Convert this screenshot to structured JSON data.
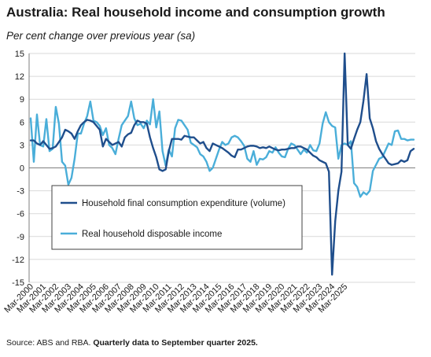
{
  "title": "Australia: Real household income and consumption growth",
  "subtitle": "Per cent change over previous year (sa)",
  "source": {
    "plain": "Source: ABS and RBA.",
    "bold": "Quarterly data to September quarter 2025."
  },
  "colors": {
    "consumption": "#1f4e8c",
    "income": "#4aaed9",
    "grid": "#d9d9d9",
    "axis": "#7f7f7f"
  },
  "chart_data": {
    "type": "line",
    "ylim": [
      -15,
      15
    ],
    "yticks": [
      15,
      12,
      9,
      6,
      3,
      0,
      -3,
      -6,
      -9,
      -12,
      -15
    ],
    "x_start": "Mar-2000",
    "x_end": "Sep-2025",
    "xticks": [
      "Mar-2000",
      "Mar-2001",
      "Mar-2002",
      "Mar-2003",
      "Mar-2004",
      "Mar-2005",
      "Mar-2006",
      "Mar-2007",
      "Mar-2008",
      "Mar-2009",
      "Mar-2010",
      "Mar-2011",
      "Mar-2012",
      "Mar-2013",
      "Mar-2014",
      "Mar-2015",
      "Mar-2016",
      "Mar-2017",
      "Mar-2018",
      "Mar-2019",
      "Mar-2020",
      "Mar-2021",
      "Mar-2022",
      "Mar-2023",
      "Mar-2024",
      "Mar-2025"
    ],
    "legend": {
      "placement": "center-left",
      "entries": [
        {
          "key": "consumption",
          "label": "Household final consumption expenditure (volume)"
        },
        {
          "key": "income",
          "label": "Real household disposable income"
        }
      ]
    },
    "grid": true,
    "series": [
      {
        "key": "consumption",
        "name": "Household final consumption expenditure (volume)",
        "values": [
          3.6,
          3.6,
          3.2,
          3.0,
          3.5,
          3.0,
          2.5,
          2.6,
          2.8,
          3.4,
          4.0,
          5.0,
          4.8,
          4.5,
          3.8,
          4.8,
          5.6,
          6.0,
          6.3,
          6.2,
          6.0,
          5.5,
          5.0,
          2.8,
          3.8,
          3.4,
          3.0,
          3.2,
          3.4,
          2.8,
          4.0,
          4.4,
          4.6,
          5.6,
          6.2,
          6.0,
          6.0,
          5.8,
          4.0,
          2.6,
          1.4,
          -0.2,
          -0.4,
          -0.2,
          2.2,
          3.8,
          3.8,
          3.8,
          3.7,
          4.2,
          4.1,
          4.0,
          4.0,
          3.6,
          3.2,
          3.4,
          2.6,
          2.2,
          3.2,
          3.0,
          2.8,
          2.6,
          2.3,
          2.0,
          1.6,
          1.4,
          2.4,
          2.4,
          2.6,
          2.8,
          2.9,
          2.9,
          2.8,
          2.6,
          2.7,
          2.6,
          2.8,
          2.6,
          2.4,
          2.3,
          2.4,
          2.4,
          2.5,
          2.6,
          2.6,
          2.8,
          2.8,
          2.6,
          2.4,
          2.0,
          1.6,
          1.4,
          1.0,
          0.8,
          0.6,
          -0.5,
          -14.0,
          -7.0,
          -3.0,
          -0.5,
          15.0,
          3.0,
          2.5,
          3.8,
          5.0,
          6.0,
          8.8,
          12.3,
          6.5,
          5.2,
          3.5,
          2.5,
          1.8,
          1.2,
          0.6,
          0.4,
          0.5,
          0.6,
          1.0,
          0.8,
          1.0,
          2.2,
          2.5
        ]
      },
      {
        "key": "income",
        "name": "Real household disposable income",
        "values": [
          6.5,
          0.8,
          7.0,
          3.0,
          2.8,
          6.4,
          2.2,
          2.5,
          8.0,
          5.8,
          0.8,
          0.3,
          -2.2,
          -1.3,
          1.2,
          4.5,
          4.5,
          5.8,
          6.8,
          8.7,
          6.2,
          6.0,
          5.5,
          4.3,
          5.2,
          3.0,
          2.6,
          1.8,
          3.8,
          5.6,
          6.2,
          6.8,
          8.7,
          6.5,
          5.6,
          5.8,
          5.2,
          6.2,
          5.7,
          9.0,
          5.3,
          7.4,
          2.2,
          0.3,
          2.4,
          1.5,
          5.2,
          6.3,
          6.2,
          5.6,
          5.0,
          3.3,
          3.0,
          2.7,
          1.8,
          1.5,
          0.8,
          -0.4,
          0.0,
          1.2,
          2.4,
          3.4,
          3.0,
          3.2,
          4.0,
          4.2,
          4.0,
          3.5,
          2.9,
          1.2,
          0.8,
          2.2,
          0.4,
          1.2,
          1.1,
          1.4,
          2.2,
          2.0,
          2.7,
          2.0,
          1.5,
          1.4,
          2.5,
          3.2,
          3.0,
          2.4,
          1.8,
          2.4,
          2.0,
          3.0,
          2.3,
          2.2,
          3.2,
          5.8,
          7.3,
          6.0,
          5.5,
          5.3,
          1.2,
          3.0,
          3.2,
          3.0,
          3.5,
          -2.0,
          -2.5,
          -3.8,
          -3.2,
          -3.5,
          -3.0,
          -0.4,
          0.4,
          1.2,
          1.4,
          2.3,
          3.2,
          3.0,
          4.8,
          4.9,
          3.8,
          3.8,
          3.6,
          3.7,
          3.7
        ]
      }
    ]
  }
}
